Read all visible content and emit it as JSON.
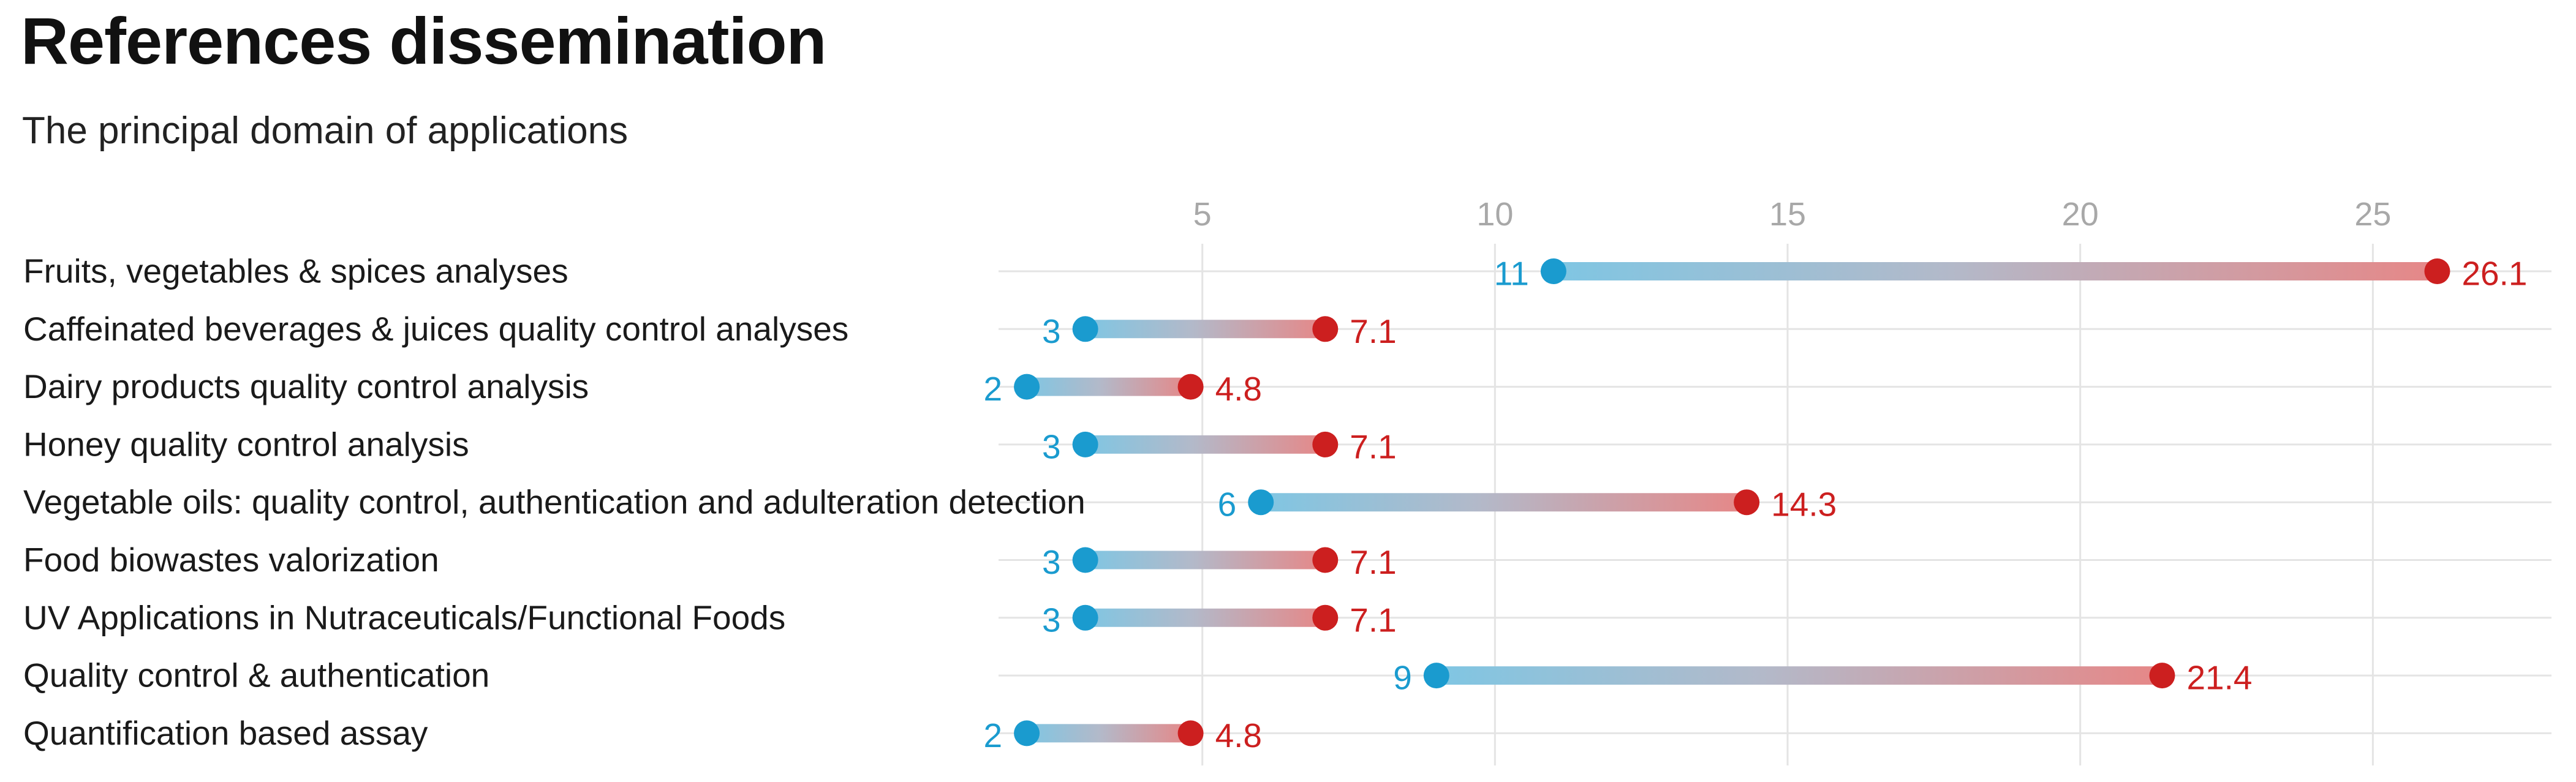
{
  "colors": {
    "start": "#1a9bcf",
    "end": "#cc1f1f",
    "grid": "#e4e4e4",
    "tick": "#a8a8a8"
  },
  "chart_data": {
    "type": "dumbbell",
    "title": "References dissemination",
    "subtitle": "The principal domain of applications",
    "xlim": [
      0,
      28
    ],
    "xticks": [
      5,
      10,
      15,
      20,
      25
    ],
    "categories": [
      "Fruits, vegetables & spices analyses",
      "Caffeinated beverages & juices quality control analyses",
      "Dairy products quality control analysis",
      "Honey quality control analysis",
      "Vegetable oils: quality control, authentication and adulteration detection",
      "Food biowastes valorization",
      "UV Applications in Nutraceuticals/Functional Foods",
      "Quality control & authentication",
      "Quantification based assay"
    ],
    "series": [
      {
        "name": "start",
        "values": [
          11,
          3,
          2,
          3,
          6,
          3,
          3,
          9,
          2
        ],
        "labels": [
          "11",
          "3",
          "2",
          "3",
          "6",
          "3",
          "3",
          "9",
          "2"
        ]
      },
      {
        "name": "end",
        "values": [
          26.1,
          7.1,
          4.8,
          7.1,
          14.3,
          7.1,
          7.1,
          21.4,
          4.8
        ],
        "labels": [
          "26.1",
          "7.1",
          "4.8",
          "7.1",
          "14.3",
          "7.1",
          "7.1",
          "21.4",
          "4.8"
        ]
      }
    ]
  }
}
